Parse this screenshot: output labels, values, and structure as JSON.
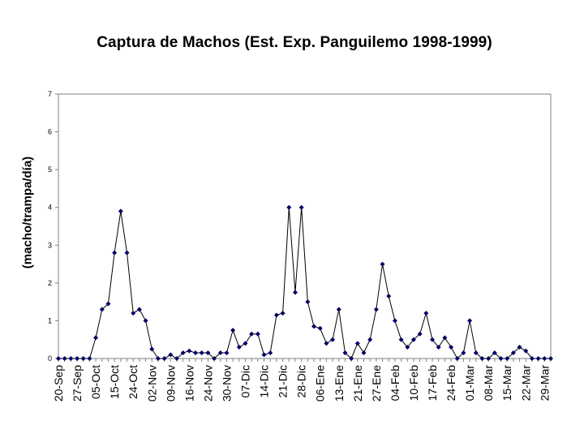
{
  "chart_data": {
    "type": "line",
    "title": "Captura de Machos (Est. Exp. Panguilemo 1998-1999)",
    "xlabel": "",
    "ylabel": "(macho/trampa/día)",
    "ylim": [
      0,
      7
    ],
    "yticks": [
      0,
      1,
      2,
      3,
      4,
      5,
      6,
      7
    ],
    "grid": false,
    "legend": "none",
    "line_color": "#000000",
    "marker_color": "#000066",
    "marker": "diamond",
    "x_tick_labels": [
      "20-Sep",
      "27-Sep",
      "05-Oct",
      "15-Oct",
      "24-Oct",
      "02-Nov",
      "09-Nov",
      "16-Nov",
      "24-Nov",
      "30-Nov",
      "07-Dic",
      "14-Dic",
      "21-Dic",
      "28-Dic",
      "06-Ene",
      "13-Ene",
      "21-Ene",
      "27-Ene",
      "04-Feb",
      "10-Feb",
      "17-Feb",
      "24-Feb",
      "01-Mar",
      "08-Mar",
      "15-Mar",
      "22-Mar",
      "29-Mar"
    ],
    "series": [
      {
        "values": [
          0,
          0,
          0,
          0,
          0,
          0,
          0.55,
          1.3,
          1.45,
          2.8,
          3.9,
          2.8,
          1.2,
          1.3,
          1.0,
          0.25,
          0,
          0,
          0.1,
          0,
          0.15,
          0.2,
          0.15,
          0.15,
          0.15,
          0,
          0.15,
          0.15,
          0.75,
          0.3,
          0.4,
          0.65,
          0.65,
          0.1,
          0.15,
          1.15,
          1.2,
          4.0,
          1.75,
          4.0,
          1.5,
          0.85,
          0.8,
          0.4,
          0.5,
          1.3,
          0.15,
          0,
          0.4,
          0.15,
          0.5,
          1.3,
          2.5,
          1.65,
          1.0,
          0.5,
          0.3,
          0.5,
          0.65,
          1.2,
          0.5,
          0.3,
          0.55,
          0.3,
          0,
          0.15,
          1.0,
          0.15,
          0,
          0,
          0.15,
          0,
          0,
          0.15,
          0.3,
          0.2,
          0,
          0,
          0,
          0
        ]
      }
    ]
  }
}
